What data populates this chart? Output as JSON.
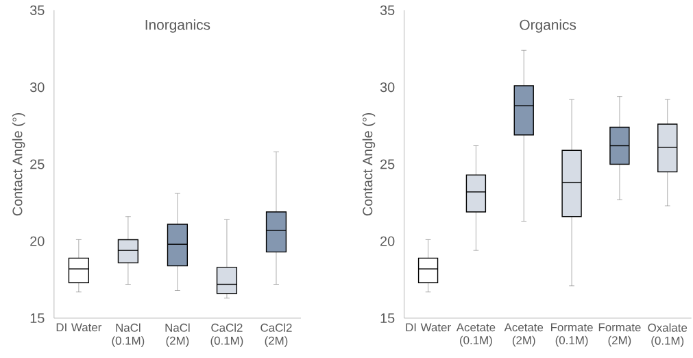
{
  "chart_data": [
    {
      "type": "box",
      "title": "Inorganics",
      "ylabel": "Contact Angle  (°)",
      "categories": [
        "DI Water",
        "NaCl (0.1M)",
        "NaCl (2M)",
        "CaCl2 (0.1M)",
        "CaCl2 (2M)"
      ],
      "boxes": [
        {
          "low": 16.7,
          "q1": 17.3,
          "median": 18.2,
          "q3": 18.9,
          "high": 20.1
        },
        {
          "low": 17.2,
          "q1": 18.6,
          "median": 19.4,
          "q3": 20.1,
          "high": 21.6
        },
        {
          "low": 16.8,
          "q1": 18.4,
          "median": 19.8,
          "q3": 21.1,
          "high": 23.1
        },
        {
          "low": 16.3,
          "q1": 16.6,
          "median": 17.2,
          "q3": 18.3,
          "high": 21.4
        },
        {
          "low": 17.2,
          "q1": 19.3,
          "median": 20.7,
          "q3": 21.9,
          "high": 25.8
        }
      ],
      "colors": [
        "#ffffff",
        "#d6dce5",
        "#8497b0",
        "#d6dce5",
        "#8497b0"
      ],
      "ylim": [
        15,
        35
      ],
      "yticks": [
        15,
        20,
        25,
        30,
        35
      ]
    },
    {
      "type": "box",
      "title": "Organics",
      "ylabel": "Contact Angle  (°)",
      "categories": [
        "DI Water",
        "Acetate (0.1M)",
        "Acetate (2M)",
        "Formate (0.1M)",
        "Formate (2M)",
        "Oxalate (0.1M)"
      ],
      "boxes": [
        {
          "low": 16.7,
          "q1": 17.3,
          "median": 18.2,
          "q3": 18.9,
          "high": 20.1
        },
        {
          "low": 19.4,
          "q1": 21.9,
          "median": 23.2,
          "q3": 24.3,
          "high": 26.2
        },
        {
          "low": 21.3,
          "q1": 26.9,
          "median": 28.8,
          "q3": 30.1,
          "high": 32.4
        },
        {
          "low": 17.1,
          "q1": 21.6,
          "median": 23.8,
          "q3": 25.9,
          "high": 29.2
        },
        {
          "low": 22.7,
          "q1": 25.0,
          "median": 26.2,
          "q3": 27.4,
          "high": 29.4
        },
        {
          "low": 22.3,
          "q1": 24.5,
          "median": 26.1,
          "q3": 27.6,
          "high": 29.2
        }
      ],
      "colors": [
        "#ffffff",
        "#d6dce5",
        "#8497b0",
        "#d6dce5",
        "#8497b0",
        "#d6dce5"
      ],
      "ylim": [
        15,
        35
      ],
      "yticks": [
        15,
        20,
        25,
        30,
        35
      ]
    }
  ]
}
